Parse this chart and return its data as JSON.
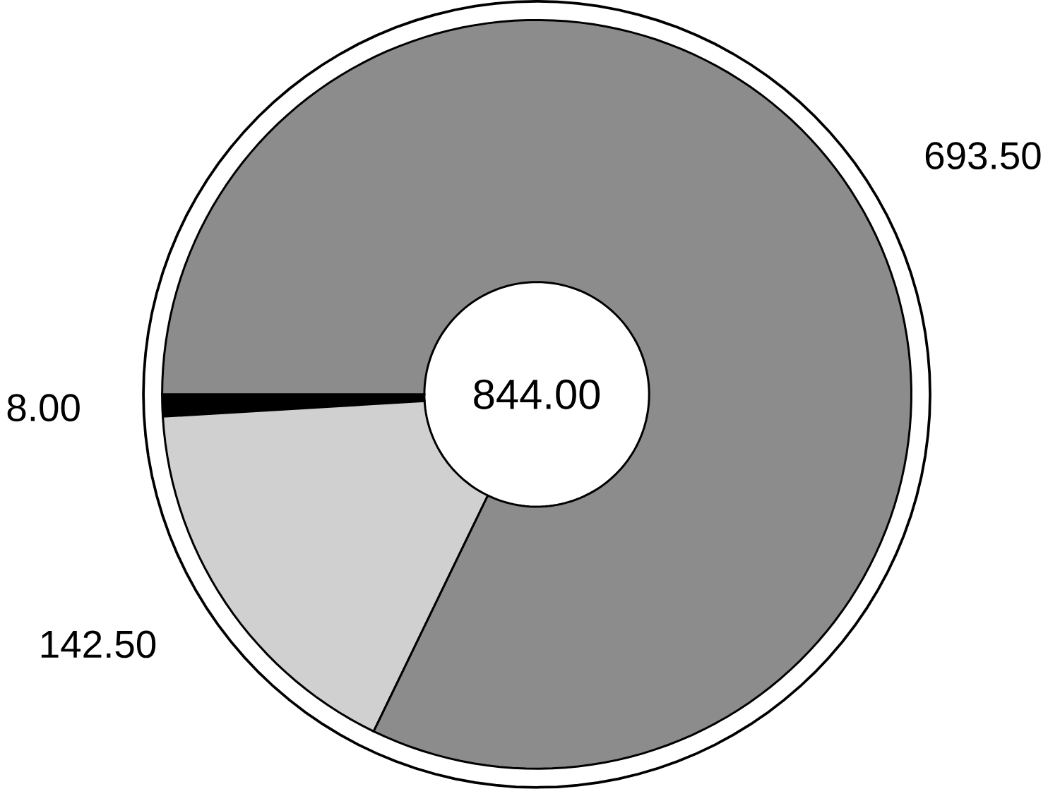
{
  "chart_data": {
    "type": "donut",
    "categories": [
      null,
      null,
      null
    ],
    "values": [
      8.0,
      142.5,
      693.5
    ],
    "value_labels": [
      "8.00",
      "142.50",
      "693.50"
    ],
    "colors": [
      "#000000",
      "#d0d0d0",
      "#8c8c8c"
    ],
    "annotations": [
      "844.00"
    ]
  }
}
